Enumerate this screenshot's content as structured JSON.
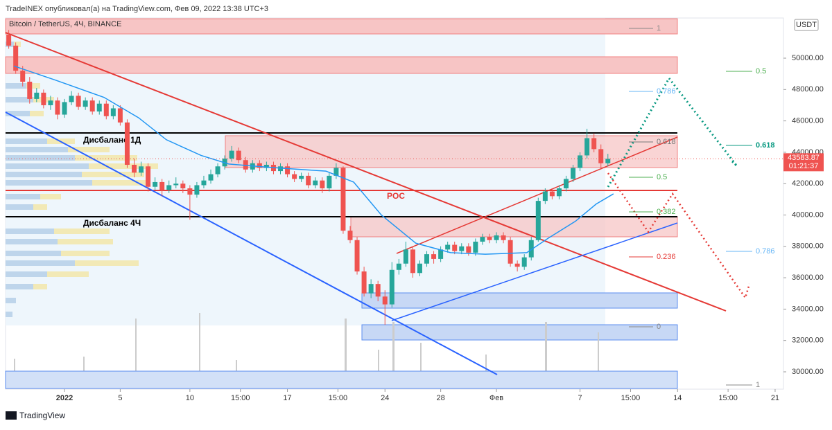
{
  "header": {
    "publisher": "TradeINEX опубликовал(а) на TradingView.com, Фев 09, 2022 13:38 UTC+3",
    "brand": "TradingView"
  },
  "chart_data": {
    "type": "candlestick",
    "title": "Bitcoin / TetherUS, 4Ч, BINANCE",
    "currency": "USDT",
    "up_color": "#26a69a",
    "down_color": "#ef5350",
    "x": [
      -4,
      -3.5,
      -3,
      -2.5,
      -2,
      -1.5,
      -1,
      -0.5,
      0,
      0.5,
      1,
      1.5,
      2,
      2.5,
      3,
      3.5,
      4,
      4.5,
      5,
      5.5,
      6,
      6.5,
      7,
      7.5,
      8,
      8.5,
      9,
      9.5,
      10,
      10.5,
      11,
      11.5,
      12,
      12.5,
      13,
      13.5,
      14,
      14.5,
      15,
      15.5,
      16,
      16.5,
      17,
      17.5,
      18,
      18.5,
      19,
      19.5,
      20,
      20.5,
      21,
      21.5,
      22,
      22.5,
      23,
      23.5,
      24,
      24.5,
      25,
      25.5,
      26,
      26.5,
      27,
      27.5,
      28,
      28.5,
      29,
      29.5,
      30,
      30.5,
      31,
      31.5,
      32,
      32.5,
      33,
      33.5,
      34,
      34.5,
      35,
      35.5,
      36,
      36.5,
      37,
      37.5,
      38,
      38.5,
      39
    ],
    "ohlc": [
      [
        51500,
        51800,
        50600,
        50800
      ],
      [
        50800,
        51000,
        49000,
        49200
      ],
      [
        49200,
        49500,
        48200,
        48500
      ],
      [
        48500,
        48800,
        47100,
        47400
      ],
      [
        47400,
        48100,
        47200,
        47800
      ],
      [
        47800,
        48000,
        46800,
        47000
      ],
      [
        47000,
        47600,
        46700,
        47300
      ],
      [
        47300,
        47500,
        46100,
        46400
      ],
      [
        46400,
        47400,
        46200,
        47200
      ],
      [
        47200,
        47900,
        47000,
        47600
      ],
      [
        47600,
        47800,
        46700,
        46900
      ],
      [
        46900,
        47500,
        46700,
        47300
      ],
      [
        47300,
        47500,
        46400,
        46600
      ],
      [
        46600,
        47300,
        46400,
        47100
      ],
      [
        47100,
        47300,
        46100,
        46300
      ],
      [
        46300,
        47000,
        46100,
        46800
      ],
      [
        46800,
        47000,
        45700,
        45900
      ],
      [
        45900,
        46100,
        43000,
        43200
      ],
      [
        43200,
        43600,
        42400,
        42700
      ],
      [
        42700,
        43400,
        42500,
        43100
      ],
      [
        43100,
        43300,
        41500,
        41800
      ],
      [
        41800,
        42400,
        41600,
        42100
      ],
      [
        42100,
        42300,
        41200,
        41600
      ],
      [
        41600,
        42200,
        41400,
        41900
      ],
      [
        41900,
        42400,
        41700,
        42000
      ],
      [
        42000,
        42200,
        41400,
        41700
      ],
      [
        41700,
        41900,
        39700,
        41300
      ],
      [
        41300,
        42100,
        41100,
        41900
      ],
      [
        41900,
        42500,
        41700,
        42200
      ],
      [
        42200,
        42900,
        42000,
        42600
      ],
      [
        42600,
        43300,
        42400,
        43100
      ],
      [
        43100,
        43800,
        42900,
        43600
      ],
      [
        43600,
        44400,
        43400,
        44100
      ],
      [
        44100,
        44300,
        43300,
        43500
      ],
      [
        43500,
        43700,
        42700,
        42900
      ],
      [
        42900,
        43500,
        42700,
        43300
      ],
      [
        43300,
        43500,
        42800,
        43000
      ],
      [
        43000,
        43400,
        42800,
        43200
      ],
      [
        43200,
        43400,
        42600,
        42800
      ],
      [
        42800,
        43300,
        42600,
        43100
      ],
      [
        43100,
        43300,
        42400,
        42600
      ],
      [
        42600,
        42800,
        42100,
        42300
      ],
      [
        42300,
        42700,
        42100,
        42500
      ],
      [
        42500,
        42700,
        41700,
        41900
      ],
      [
        41900,
        42400,
        41700,
        42200
      ],
      [
        42200,
        42400,
        41400,
        41700
      ],
      [
        41700,
        42700,
        41500,
        42500
      ],
      [
        42500,
        43300,
        42300,
        43000
      ],
      [
        43000,
        43100,
        38800,
        39000
      ],
      [
        39000,
        39300,
        38200,
        38400
      ],
      [
        38400,
        38600,
        36200,
        36400
      ],
      [
        36400,
        36700,
        34800,
        35000
      ],
      [
        35000,
        35900,
        34700,
        35600
      ],
      [
        35600,
        35800,
        34500,
        34800
      ],
      [
        34800,
        35200,
        33000,
        34300
      ],
      [
        34300,
        37000,
        34100,
        36500
      ],
      [
        36500,
        37200,
        36200,
        36900
      ],
      [
        36900,
        38300,
        36700,
        37800
      ],
      [
        37800,
        38000,
        36000,
        36300
      ],
      [
        36300,
        37100,
        36100,
        36900
      ],
      [
        36900,
        37700,
        36700,
        37500
      ],
      [
        37500,
        37700,
        36900,
        37200
      ],
      [
        37200,
        38000,
        37000,
        37800
      ],
      [
        37800,
        38300,
        37600,
        38100
      ],
      [
        38100,
        38300,
        37500,
        37700
      ],
      [
        37700,
        38200,
        37500,
        38000
      ],
      [
        38000,
        38200,
        37400,
        37600
      ],
      [
        37600,
        38500,
        37400,
        38300
      ],
      [
        38300,
        38800,
        38100,
        38600
      ],
      [
        38600,
        38800,
        38200,
        38400
      ],
      [
        38400,
        38900,
        38200,
        38700
      ],
      [
        38700,
        38900,
        38200,
        38400
      ],
      [
        38400,
        38600,
        36700,
        36900
      ],
      [
        36900,
        37100,
        36400,
        36700
      ],
      [
        36700,
        37500,
        36500,
        37300
      ],
      [
        37300,
        38600,
        37100,
        38400
      ],
      [
        38400,
        41100,
        38300,
        40900
      ],
      [
        40900,
        41700,
        40700,
        41500
      ],
      [
        41500,
        41700,
        41000,
        41200
      ],
      [
        41200,
        41900,
        41000,
        41700
      ],
      [
        41700,
        42500,
        41500,
        42300
      ],
      [
        42300,
        43200,
        42100,
        43000
      ],
      [
        43000,
        44000,
        42800,
        43800
      ],
      [
        43800,
        45500,
        43600,
        44900
      ],
      [
        44900,
        45200,
        44000,
        44200
      ],
      [
        44200,
        44500,
        42900,
        43300
      ],
      [
        43300,
        43900,
        43100,
        43583.87
      ]
    ],
    "ma": {
      "color": "#2196f3",
      "x": [
        -3.63,
        -0.65,
        2.84,
        5.32,
        7.31,
        9.8,
        11.79,
        15.27,
        18.76,
        20.75,
        22.74,
        25.22,
        27.71,
        30.2,
        33.18,
        34.68,
        36.67,
        38.16,
        39.4
      ],
      "values": [
        49500,
        48600,
        47500,
        46200,
        44800,
        43800,
        43250,
        43000,
        42800,
        42100,
        40000,
        38200,
        37600,
        37500,
        37600,
        38500,
        39600,
        40700,
        41350
      ]
    },
    "xlim": [
      -4.23,
      51.6
    ],
    "ylim": [
      28896,
      52561
    ],
    "xticks": [
      {
        "value": 0,
        "label": "2022"
      },
      {
        "value": 4,
        "label": "5"
      },
      {
        "value": 9,
        "label": "10"
      },
      {
        "value": 12.625,
        "label": "15:00"
      },
      {
        "value": 16,
        "label": "17"
      },
      {
        "value": 19.625,
        "label": "15:00"
      },
      {
        "value": 23,
        "label": "24"
      },
      {
        "value": 27,
        "label": "28"
      },
      {
        "value": 31,
        "label": "Фев"
      },
      {
        "value": 37,
        "label": "7"
      },
      {
        "value": 40.625,
        "label": "15:00"
      },
      {
        "value": 44,
        "label": "14"
      },
      {
        "value": 47.625,
        "label": "15:00"
      },
      {
        "value": 51,
        "label": "21"
      }
    ],
    "yticks": [
      {
        "value": 30000,
        "label": "30000.00"
      },
      {
        "value": 32000,
        "label": "32000.00"
      },
      {
        "value": 34000,
        "label": "34000.00"
      },
      {
        "value": 36000,
        "label": "36000.00"
      },
      {
        "value": 38000,
        "label": "38000.00"
      },
      {
        "value": 40000,
        "label": "40000.00"
      },
      {
        "value": 42000,
        "label": "42000.00"
      },
      {
        "value": 44000,
        "label": "44000.00"
      },
      {
        "value": 46000,
        "label": "46000.00"
      },
      {
        "value": 48000,
        "label": "48000.00"
      },
      {
        "value": 50000,
        "label": "50000.00"
      }
    ],
    "last_price": 43583.87,
    "countdown": "01:21:37",
    "annotations": [
      "Дисбаланс 1Д",
      "Дисбаланс 4Ч",
      "POC"
    ],
    "fib_left": [
      {
        "level": 1,
        "price": 51898,
        "color": "#888888"
      },
      {
        "level": 0.786,
        "price": 47881,
        "color": "#64b5f6"
      },
      {
        "level": 0.618,
        "price": 44658,
        "color": "#777777"
      },
      {
        "level": 0.5,
        "price": 42406,
        "color": "#4caf50"
      },
      {
        "level": 0.382,
        "price": 40199,
        "color": "#4caf50"
      },
      {
        "level": 0.236,
        "price": 37329,
        "color": "#e53935"
      },
      {
        "level": 0,
        "price": 32870,
        "color": "#888888"
      }
    ],
    "fib_right": [
      {
        "level": 0.5,
        "price": 49161,
        "color": "#4caf50"
      },
      {
        "level": 0.618,
        "price": 44437,
        "color": "#089981"
      },
      {
        "level": 0.786,
        "price": 37682,
        "color": "#64b5f6"
      },
      {
        "level": 1,
        "price": 29161,
        "color": "#888888"
      }
    ]
  }
}
